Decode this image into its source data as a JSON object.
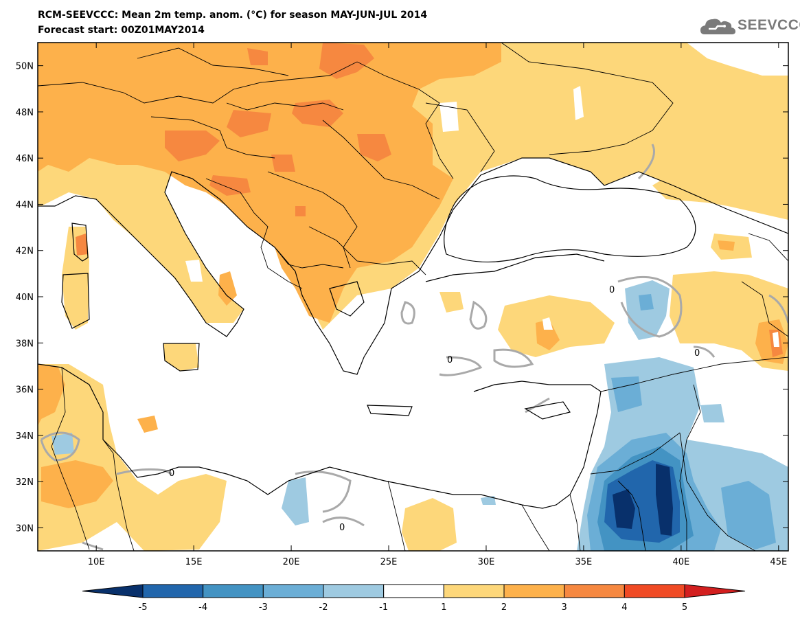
{
  "title": {
    "line1": "RCM-SEEVCCC: Mean 2m temp. anom. (°C) for season MAY-JUN-JUL 2014",
    "line2": "Forecast start: 00Z01MAY2014"
  },
  "logo": {
    "text": "SEEVCCC"
  },
  "map": {
    "lon_range": [
      7,
      45.5
    ],
    "lat_range": [
      29,
      51
    ],
    "lat_ticks": [
      {
        "value": 50,
        "label": "50N"
      },
      {
        "value": 48,
        "label": "48N"
      },
      {
        "value": 46,
        "label": "46N"
      },
      {
        "value": 44,
        "label": "44N"
      },
      {
        "value": 42,
        "label": "42N"
      },
      {
        "value": 40,
        "label": "40N"
      },
      {
        "value": 38,
        "label": "38N"
      },
      {
        "value": 36,
        "label": "36N"
      },
      {
        "value": 34,
        "label": "34N"
      },
      {
        "value": 32,
        "label": "32N"
      },
      {
        "value": 30,
        "label": "30N"
      }
    ],
    "lon_ticks": [
      {
        "value": 10,
        "label": "10E"
      },
      {
        "value": 15,
        "label": "15E"
      },
      {
        "value": 20,
        "label": "20E"
      },
      {
        "value": 25,
        "label": "25E"
      },
      {
        "value": 30,
        "label": "30E"
      },
      {
        "value": 35,
        "label": "35E"
      },
      {
        "value": 40,
        "label": "40E"
      },
      {
        "value": 45,
        "label": "45E"
      }
    ],
    "zero_contour_label": "0"
  },
  "colorbar": {
    "labels": [
      "-5",
      "-4",
      "-3",
      "-2",
      "-1",
      "1",
      "2",
      "3",
      "4",
      "5"
    ],
    "colors": {
      "lt_-5": "#08306b",
      "-5_-4": "#2166ac",
      "-4_-3": "#4393c3",
      "-3_-2": "#6baed6",
      "-2_-1": "#9ecae1",
      "-1_1": "#ffffff",
      "1_2": "#fdd77a",
      "2_3": "#fdb14b",
      "3_4": "#f68840",
      "4_5": "#f04a24",
      "gt_5": "#d31f1f"
    }
  }
}
